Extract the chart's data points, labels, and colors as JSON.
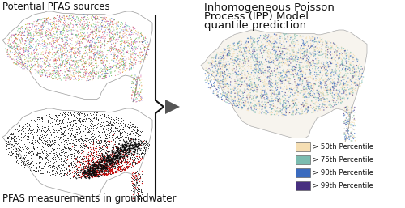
{
  "background_color": "#ffffff",
  "text_top_left": "Potential PFAS sources",
  "text_bottom_left": "PFAS measurements in groundwater",
  "text_right_line1": "Inhomogeneous Poisson",
  "text_right_line2": "Process (IPP) Model",
  "text_right_line3": "quantile prediction",
  "legend_colors": [
    "#f5deb3",
    "#7bbcb0",
    "#3a6bbf",
    "#483080"
  ],
  "legend_labels": [
    "> 50th Percentile",
    "> 75th Percentile",
    "> 90th Percentile",
    "> 99th Percentile"
  ],
  "font_size_label": 8.5,
  "font_size_legend": 6.2,
  "font_size_header": 9.5,
  "map1_bg": "#ffffff",
  "map2_bg": "#ffffff",
  "map3_bg": "#f7f4ee",
  "map_border": "#aaaaaa",
  "brace_color": "#111111",
  "arrow_color": "#444444"
}
